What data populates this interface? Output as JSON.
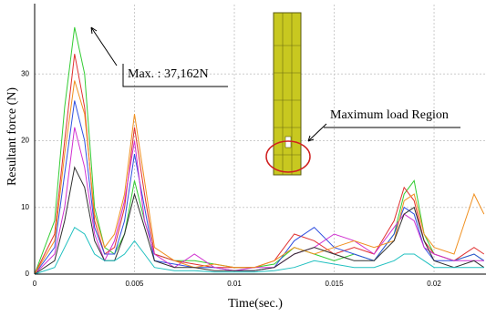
{
  "chart_data": {
    "type": "line",
    "x_label": "Time(sec.)",
    "y_label": "Resultant force (N)",
    "annotations": [
      "Max. : 37,162N",
      "Maximum load Region"
    ],
    "x": [
      0,
      0.001,
      0.0015,
      0.002,
      0.0025,
      0.003,
      0.0035,
      0.004,
      0.0045,
      0.005,
      0.0055,
      0.006,
      0.007,
      0.008,
      0.009,
      0.01,
      0.011,
      0.012,
      0.013,
      0.014,
      0.015,
      0.016,
      0.017,
      0.018,
      0.0185,
      0.019,
      0.0195,
      0.02,
      0.021,
      0.022,
      0.0225
    ],
    "series": [
      {
        "color": "#33cc33",
        "values": [
          0,
          8,
          25,
          37,
          30,
          10,
          4,
          3,
          6,
          14,
          8,
          3,
          2,
          2,
          1.5,
          1,
          1,
          1.5,
          4,
          3,
          2,
          3,
          2,
          6,
          12,
          14,
          6,
          3,
          2,
          3,
          2
        ]
      },
      {
        "color": "#e03030",
        "values": [
          0,
          6,
          20,
          33,
          25,
          8,
          3,
          4,
          10,
          22,
          12,
          3,
          2,
          1.5,
          1,
          1,
          1,
          2,
          6,
          5,
          3,
          4,
          3,
          8,
          13,
          11,
          5,
          3,
          2,
          4,
          3
        ]
      },
      {
        "color": "#3050e0",
        "values": [
          0,
          4,
          15,
          26,
          20,
          7,
          3,
          3,
          8,
          18,
          10,
          2,
          1.5,
          1,
          1,
          0.5,
          0.5,
          1,
          5,
          7,
          4,
          3,
          2,
          6,
          10,
          9,
          4,
          2,
          2,
          3,
          2
        ]
      },
      {
        "color": "#d030d0",
        "values": [
          0,
          3,
          10,
          22,
          16,
          6,
          2,
          5,
          11,
          20,
          8,
          3,
          1,
          3,
          1,
          0.5,
          1,
          1,
          3,
          4,
          6,
          5,
          3,
          7,
          9,
          8,
          4,
          3,
          2,
          2,
          2
        ]
      },
      {
        "color": "#f09020",
        "values": [
          0,
          5,
          18,
          29,
          24,
          9,
          4,
          6,
          12,
          24,
          14,
          4,
          2,
          1,
          1.5,
          1,
          1,
          2,
          4,
          3,
          4,
          5,
          4,
          5,
          11,
          12,
          6,
          4,
          3,
          12,
          9
        ]
      },
      {
        "color": "#303030",
        "values": [
          0,
          2,
          8,
          16,
          13,
          5,
          2,
          2,
          6,
          12,
          7,
          2,
          1,
          1,
          0.5,
          0.5,
          0.5,
          1,
          3,
          4,
          3,
          2,
          2,
          5,
          9,
          10,
          5,
          2,
          1,
          2,
          1
        ]
      },
      {
        "color": "#20c0c0",
        "values": [
          0,
          1,
          4,
          7,
          6,
          3,
          2,
          2,
          3,
          5,
          3,
          1,
          0.5,
          0.5,
          0.3,
          0.3,
          0.3,
          0.5,
          1,
          2,
          1.5,
          1,
          1,
          2,
          3,
          3,
          2,
          1,
          1,
          1,
          1
        ]
      }
    ],
    "xlim": [
      0,
      0.0226
    ],
    "ylim": [
      0,
      40.4
    ],
    "xticks": [
      0,
      0.005,
      0.01,
      0.015,
      0.02
    ],
    "yticks": [
      0,
      10,
      20,
      30
    ],
    "grid": true
  }
}
